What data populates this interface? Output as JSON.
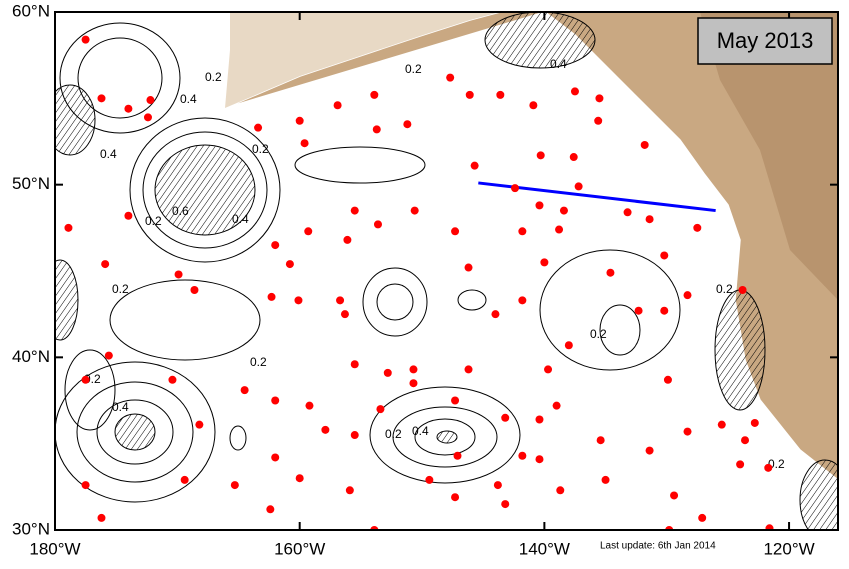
{
  "map": {
    "title": "May 2013",
    "footer": "Last update: 6th Jan 2014",
    "xlim": [
      -180,
      -116
    ],
    "ylim": [
      30,
      60
    ],
    "xticks": [
      {
        "value": -180,
        "label": "180°W"
      },
      {
        "value": -160,
        "label": "160°W"
      },
      {
        "value": -140,
        "label": "140°W"
      },
      {
        "value": -120,
        "label": "120°W"
      }
    ],
    "yticks": [
      {
        "value": 30,
        "label": "30°N"
      },
      {
        "value": 40,
        "label": "40°N"
      },
      {
        "value": 50,
        "label": "50°N"
      },
      {
        "value": 60,
        "label": "60°N"
      }
    ],
    "float_color": "#ff0000",
    "floats": {
      "lon": [
        -177.5,
        -176.2,
        -174.0,
        -172.2,
        -172.4,
        -178.9,
        -174.0,
        -175.9,
        -169.9,
        -168.6,
        -175.6,
        -177.5,
        -170.4,
        -168.2,
        -177.5,
        -176.2,
        -169.4,
        -165.3,
        -164.5,
        -162.0,
        -159.2,
        -162.0,
        -160.0,
        -162.4,
        -157.9,
        -155.5,
        -155.9,
        -153.9,
        -163.4,
        -160.0,
        -159.6,
        -156.9,
        -153.9,
        -153.7,
        -151.2,
        -147.7,
        -146.1,
        -143.6,
        -140.9,
        -137.5,
        -135.5,
        -135.6,
        -131.8,
        -140.3,
        -137.6,
        -145.7,
        -142.4,
        -140.4,
        -138.4,
        -137.2,
        -133.2,
        -127.5,
        -128.3,
        -130.2,
        -132.3,
        -134.6,
        -140.0,
        -138.8,
        -141.8,
        -141.8,
        -144.0,
        -146.2,
        -147.3,
        -150.6,
        -153.6,
        -155.5,
        -156.1,
        -159.3,
        -162.0,
        -160.8,
        -162.3,
        -160.1,
        -156.7,
        -156.3,
        -155.5,
        -152.8,
        -150.7,
        -150.7,
        -146.2,
        -153.4,
        -147.3,
        -143.2,
        -140.4,
        -139.7,
        -138.0,
        -139.0,
        -141.8,
        -140.4,
        -147.1,
        -149.4,
        -147.3,
        -143.8,
        -143.2,
        -138.7,
        -135.4,
        -135.0,
        -131.4,
        -129.9,
        -128.3,
        -125.5,
        -123.6,
        -124.0,
        -129.4,
        -129.8,
        -127.1,
        -121.6,
        -121.7,
        -122.8,
        -123.8,
        -130.2,
        -131.4
      ],
      "lat": [
        58.4,
        55.0,
        54.4,
        54.9,
        53.9,
        47.5,
        48.2,
        45.4,
        44.8,
        43.9,
        40.1,
        38.7,
        38.7,
        36.1,
        32.6,
        30.7,
        32.9,
        32.6,
        38.1,
        37.5,
        37.2,
        34.2,
        33.0,
        31.2,
        35.8,
        35.5,
        32.3,
        30.0,
        53.3,
        53.7,
        52.4,
        54.6,
        55.2,
        53.2,
        53.5,
        56.2,
        55.2,
        55.2,
        54.6,
        55.4,
        55.0,
        53.7,
        52.3,
        51.7,
        51.6,
        51.1,
        49.8,
        48.8,
        48.5,
        49.9,
        48.4,
        47.5,
        43.6,
        42.7,
        42.7,
        44.9,
        45.5,
        47.4,
        47.3,
        43.3,
        42.5,
        45.2,
        47.3,
        48.5,
        47.7,
        48.5,
        46.8,
        47.3,
        46.5,
        45.4,
        43.5,
        43.3,
        43.3,
        42.5,
        39.6,
        39.1,
        39.3,
        38.5,
        39.3,
        37.0,
        37.5,
        36.5,
        36.4,
        39.3,
        40.7,
        37.2,
        34.3,
        34.1,
        34.3,
        32.9,
        31.9,
        32.6,
        31.5,
        32.3,
        35.2,
        32.9,
        34.6,
        38.7,
        35.7,
        36.1,
        35.2,
        33.8,
        32.0,
        30.0,
        30.7,
        30.1,
        33.6,
        36.2,
        43.9,
        45.9,
        48.0
      ]
    },
    "section_line": {
      "lon": [
        -145.4,
        -126.0
      ],
      "lat": [
        50.1,
        48.5
      ],
      "color": "#0000ff"
    },
    "contour_labels": [
      "0.2",
      "0.4",
      "0.2",
      "0.4",
      "0.6",
      "0.4",
      "0.2",
      "0.2",
      "0.2",
      "0.2",
      "0.4",
      "0.2",
      "0.4",
      "0.2",
      "0.4",
      "0.2",
      "0.2",
      "0.2"
    ]
  }
}
